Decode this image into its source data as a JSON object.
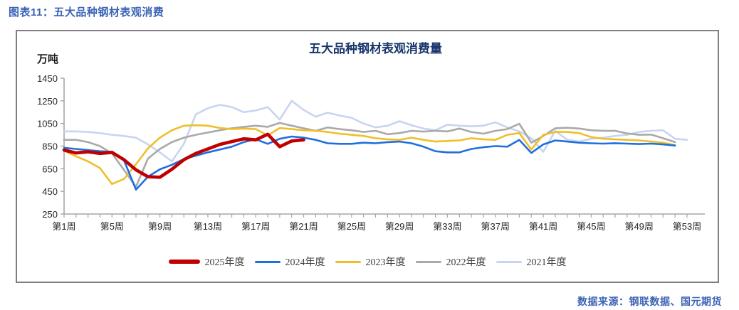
{
  "header": {
    "title": "图表11：五大品种钢材表观消费"
  },
  "footer": {
    "source": "数据来源：钢联数据、国元期货"
  },
  "colors": {
    "header_blue": "#3b63b5",
    "chart_title_navy": "#17356b",
    "axis_gray": "#a6a6a6",
    "panel_border_gray": "#7f7f7f"
  },
  "chart_data": {
    "type": "line",
    "title": "五大品种钢材表观消费量",
    "y_unit": "万吨",
    "ylim": [
      250,
      1450
    ],
    "y_ticks": [
      250,
      450,
      650,
      850,
      1050,
      1250,
      1450
    ],
    "x_weeks": 53,
    "x_tick_step": 4,
    "x_tick_labels": [
      "第1周",
      "第5周",
      "第9周",
      "第13周",
      "第17周",
      "第21周",
      "第25周",
      "第29周",
      "第33周",
      "第37周",
      "第41周",
      "第45周",
      "第49周",
      "第53周"
    ],
    "grid": false,
    "legend_position": "bottom",
    "series": [
      {
        "name": "2025年度",
        "color": "#c00000",
        "line_width": 4.6,
        "start_week": 1,
        "values": [
          815,
          790,
          800,
          785,
          795,
          730,
          640,
          580,
          575,
          645,
          730,
          785,
          825,
          865,
          890,
          915,
          905,
          955,
          845,
          895,
          905
        ]
      },
      {
        "name": "2024年度",
        "color": "#1e6fe0",
        "line_width": 2.6,
        "start_week": 1,
        "values": [
          835,
          825,
          815,
          805,
          800,
          725,
          465,
          580,
          645,
          685,
          735,
          765,
          795,
          820,
          845,
          885,
          910,
          870,
          915,
          935,
          925,
          905,
          875,
          870,
          870,
          880,
          875,
          885,
          890,
          875,
          845,
          805,
          795,
          795,
          825,
          840,
          850,
          845,
          905,
          790,
          865,
          900,
          890,
          880,
          875,
          872,
          876,
          872,
          868,
          872,
          865,
          855
        ]
      },
      {
        "name": "2023年度",
        "color": "#efbf2a",
        "line_width": 2.6,
        "start_week": 1,
        "values": [
          810,
          760,
          715,
          655,
          515,
          560,
          690,
          830,
          925,
          990,
          1030,
          1035,
          1030,
          1010,
          1000,
          1005,
          1000,
          945,
          1010,
          1000,
          990,
          985,
          975,
          960,
          950,
          940,
          920,
          910,
          905,
          925,
          905,
          890,
          895,
          900,
          920,
          910,
          905,
          950,
          965,
          820,
          950,
          975,
          975,
          965,
          930,
          915,
          910,
          905,
          900,
          890,
          880,
          858
        ]
      },
      {
        "name": "2022年度",
        "color": "#a9a9a9",
        "line_width": 2.6,
        "start_week": 1,
        "values": [
          905,
          905,
          885,
          850,
          785,
          640,
          490,
          740,
          825,
          885,
          925,
          950,
          970,
          990,
          1008,
          1020,
          1030,
          1020,
          1055,
          1030,
          1008,
          985,
          1015,
          1000,
          990,
          975,
          985,
          955,
          965,
          985,
          978,
          985,
          980,
          1005,
          975,
          960,
          985,
          1000,
          1048,
          880,
          940,
          1008,
          1012,
          1005,
          990,
          985,
          985,
          962,
          950,
          952,
          920,
          885
        ]
      },
      {
        "name": "2021年度",
        "color": "#c7d5f0",
        "line_width": 2.6,
        "start_week": 1,
        "values": [
          980,
          980,
          975,
          965,
          950,
          940,
          925,
          865,
          795,
          715,
          870,
          1130,
          1185,
          1215,
          1195,
          1150,
          1165,
          1195,
          1085,
          1250,
          1170,
          1110,
          1145,
          1120,
          1100,
          1050,
          1015,
          1030,
          1070,
          1035,
          1005,
          990,
          1040,
          1030,
          1025,
          1030,
          1060,
          1015,
          980,
          920,
          800,
          985,
          905,
          890,
          915,
          925,
          940,
          950,
          975,
          985,
          990,
          915,
          905
        ]
      }
    ]
  }
}
